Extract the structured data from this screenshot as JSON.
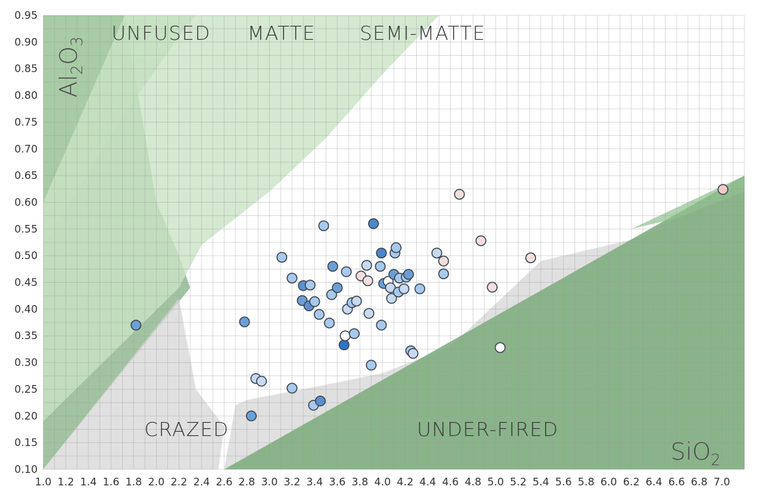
{
  "chart_data": {
    "type": "scatter",
    "title": "",
    "xlabel": "SiO",
    "xlabel_sub": "2",
    "ylabel": "Al",
    "ylabel_sub1": "2",
    "ylabel_mid": "O",
    "ylabel_sub2": "3",
    "xlim": [
      1.0,
      7.2
    ],
    "ylim": [
      0.1,
      0.95
    ],
    "grid": true,
    "x_ticks": [
      "1.0",
      "1.2",
      "1.4",
      "1.6",
      "1.8",
      "2.0",
      "2.2",
      "2.4",
      "2.6",
      "2.8",
      "3.0",
      "3.2",
      "3.4",
      "3.6",
      "3.8",
      "4.0",
      "4.2",
      "4.4",
      "4.6",
      "4.8",
      "5.0",
      "5.2",
      "5.4",
      "5.6",
      "5.8",
      "6.0",
      "6.2",
      "6.4",
      "6.6",
      "6.8",
      "7.0"
    ],
    "y_ticks": [
      "0.10",
      "0.15",
      "0.20",
      "0.25",
      "0.30",
      "0.35",
      "0.40",
      "0.45",
      "0.50",
      "0.55",
      "0.60",
      "0.65",
      "0.70",
      "0.75",
      "0.80",
      "0.85",
      "0.90",
      "0.95"
    ],
    "region_labels": {
      "unfused": "UNFUSED",
      "matte": "MATTE",
      "semi_matte": "SEMI-MATTE",
      "crazed": "CRAZED",
      "under_fired": "UNDER-FIRED"
    },
    "regions": [
      {
        "name": "unfused",
        "color": "#7aaa7a",
        "opacity": 0.7,
        "polygon": [
          [
            1.0,
            0.95
          ],
          [
            1.72,
            0.95
          ],
          [
            2.0,
            0.6
          ],
          [
            2.2,
            0.5
          ],
          [
            2.3,
            0.44
          ],
          [
            1.0,
            0.1
          ]
        ]
      },
      {
        "name": "matte",
        "color": "#a9cfa6",
        "opacity": 0.75,
        "polygon": [
          [
            1.0,
            0.52
          ],
          [
            1.7,
            0.76
          ],
          [
            2.2,
            0.91
          ],
          [
            2.35,
            0.95
          ],
          [
            1.72,
            0.95
          ],
          [
            1.0,
            0.95
          ]
        ]
      },
      {
        "name": "semi-matte",
        "color": "#c9e3c4",
        "opacity": 0.8,
        "polygon": [
          [
            1.0,
            0.1
          ],
          [
            1.0,
            0.19
          ],
          [
            2.2,
            0.44
          ],
          [
            2.4,
            0.52
          ],
          [
            3.0,
            0.62
          ],
          [
            3.5,
            0.72
          ],
          [
            4.0,
            0.84
          ],
          [
            4.5,
            0.95
          ],
          [
            1.72,
            0.95
          ],
          [
            1.0,
            0.6
          ]
        ]
      },
      {
        "name": "crazed",
        "color": "#d6d6d6",
        "opacity": 0.75,
        "polygon": [
          [
            1.0,
            0.1
          ],
          [
            2.55,
            0.1
          ],
          [
            2.6,
            0.18
          ],
          [
            2.35,
            0.25
          ],
          [
            2.2,
            0.42
          ],
          [
            1.0,
            0.1
          ]
        ]
      },
      {
        "name": "crazed-lower",
        "color": "#d6d6d6",
        "opacity": 0.75,
        "polygon": [
          [
            2.6,
            0.1
          ],
          [
            2.7,
            0.22
          ],
          [
            2.8,
            0.23
          ],
          [
            3.3,
            0.25
          ],
          [
            4.0,
            0.28
          ],
          [
            4.6,
            0.33
          ],
          [
            5.0,
            0.41
          ],
          [
            5.4,
            0.49
          ],
          [
            6.2,
            0.53
          ],
          [
            6.6,
            0.57
          ],
          [
            7.2,
            0.63
          ],
          [
            7.2,
            0.1
          ]
        ]
      },
      {
        "name": "under-fired",
        "color": "#7aaa7a",
        "opacity": 0.85,
        "polygon": [
          [
            2.6,
            0.1
          ],
          [
            7.2,
            0.65
          ],
          [
            7.2,
            0.1
          ]
        ]
      },
      {
        "name": "under-fired-top",
        "color": "#8fc18f",
        "opacity": 0.7,
        "polygon": [
          [
            6.2,
            0.55
          ],
          [
            7.2,
            0.65
          ],
          [
            7.2,
            0.62
          ],
          [
            6.6,
            0.57
          ]
        ]
      }
    ],
    "points": [
      {
        "x": 1.82,
        "y": 0.37,
        "c": "#6b9fd6"
      },
      {
        "x": 2.78,
        "y": 0.376,
        "c": "#6b9fd6"
      },
      {
        "x": 2.84,
        "y": 0.2,
        "c": "#6b9fd6"
      },
      {
        "x": 2.88,
        "y": 0.27,
        "c": "#c7daf0"
      },
      {
        "x": 2.93,
        "y": 0.265,
        "c": "#c7daf0"
      },
      {
        "x": 3.11,
        "y": 0.497,
        "c": "#a9c9ec"
      },
      {
        "x": 3.2,
        "y": 0.252,
        "c": "#a9c9ec"
      },
      {
        "x": 3.2,
        "y": 0.458,
        "c": "#a9c9ec"
      },
      {
        "x": 3.29,
        "y": 0.416,
        "c": "#6b9fd6"
      },
      {
        "x": 3.3,
        "y": 0.444,
        "c": "#5b90d0"
      },
      {
        "x": 3.36,
        "y": 0.445,
        "c": "#a9c9ec"
      },
      {
        "x": 3.35,
        "y": 0.406,
        "c": "#5b90d0"
      },
      {
        "x": 3.39,
        "y": 0.22,
        "c": "#a9c9ec"
      },
      {
        "x": 3.4,
        "y": 0.414,
        "c": "#a9c9ec"
      },
      {
        "x": 3.44,
        "y": 0.39,
        "c": "#a9c9ec"
      },
      {
        "x": 3.45,
        "y": 0.228,
        "c": "#5b90d0"
      },
      {
        "x": 3.48,
        "y": 0.556,
        "c": "#a9c9ec"
      },
      {
        "x": 3.53,
        "y": 0.374,
        "c": "#a9c9ec"
      },
      {
        "x": 3.55,
        "y": 0.427,
        "c": "#a9c9ec"
      },
      {
        "x": 3.56,
        "y": 0.48,
        "c": "#6b9fd6"
      },
      {
        "x": 3.6,
        "y": 0.44,
        "c": "#6b9fd6"
      },
      {
        "x": 3.66,
        "y": 0.333,
        "c": "#2f74c8"
      },
      {
        "x": 3.67,
        "y": 0.35,
        "c": "#ffffff"
      },
      {
        "x": 3.68,
        "y": 0.47,
        "c": "#a9c9ec"
      },
      {
        "x": 3.69,
        "y": 0.4,
        "c": "#c7daf0"
      },
      {
        "x": 3.73,
        "y": 0.412,
        "c": "#a9c9ec"
      },
      {
        "x": 3.75,
        "y": 0.354,
        "c": "#a9c9ec"
      },
      {
        "x": 3.77,
        "y": 0.415,
        "c": "#c7daf0"
      },
      {
        "x": 3.81,
        "y": 0.462,
        "c": "#f3dede"
      },
      {
        "x": 3.86,
        "y": 0.482,
        "c": "#c7daf0"
      },
      {
        "x": 3.87,
        "y": 0.453,
        "c": "#f3dede"
      },
      {
        "x": 3.88,
        "y": 0.392,
        "c": "#c7daf0"
      },
      {
        "x": 3.9,
        "y": 0.295,
        "c": "#a9c9ec"
      },
      {
        "x": 3.92,
        "y": 0.56,
        "c": "#4a86cc"
      },
      {
        "x": 3.98,
        "y": 0.48,
        "c": "#a9c9ec"
      },
      {
        "x": 3.99,
        "y": 0.37,
        "c": "#a9c9ec"
      },
      {
        "x": 3.99,
        "y": 0.505,
        "c": "#4a86cc"
      },
      {
        "x": 4.01,
        "y": 0.448,
        "c": "#6b9fd6"
      },
      {
        "x": 4.05,
        "y": 0.452,
        "c": "#ffffff"
      },
      {
        "x": 4.07,
        "y": 0.44,
        "c": "#c7daf0"
      },
      {
        "x": 4.08,
        "y": 0.42,
        "c": "#c7daf0"
      },
      {
        "x": 4.1,
        "y": 0.465,
        "c": "#6b9fd6"
      },
      {
        "x": 4.11,
        "y": 0.505,
        "c": "#a9c9ec"
      },
      {
        "x": 4.12,
        "y": 0.515,
        "c": "#a9c9ec"
      },
      {
        "x": 4.14,
        "y": 0.432,
        "c": "#a9c9ec"
      },
      {
        "x": 4.15,
        "y": 0.458,
        "c": "#a9c9ec"
      },
      {
        "x": 4.19,
        "y": 0.438,
        "c": "#c7daf0"
      },
      {
        "x": 4.21,
        "y": 0.46,
        "c": "#a9c9ec"
      },
      {
        "x": 4.23,
        "y": 0.465,
        "c": "#6b9fd6"
      },
      {
        "x": 4.25,
        "y": 0.322,
        "c": "#a9c9ec"
      },
      {
        "x": 4.27,
        "y": 0.317,
        "c": "#c7daf0"
      },
      {
        "x": 4.33,
        "y": 0.438,
        "c": "#a9c9ec"
      },
      {
        "x": 4.48,
        "y": 0.505,
        "c": "#c7daf0"
      },
      {
        "x": 4.54,
        "y": 0.466,
        "c": "#a9c9ec"
      },
      {
        "x": 4.54,
        "y": 0.49,
        "c": "#f3dede"
      },
      {
        "x": 4.68,
        "y": 0.615,
        "c": "#f3dede"
      },
      {
        "x": 4.87,
        "y": 0.528,
        "c": "#f3dede"
      },
      {
        "x": 4.97,
        "y": 0.441,
        "c": "#f3dede"
      },
      {
        "x": 5.04,
        "y": 0.328,
        "c": "#ffffff"
      },
      {
        "x": 5.31,
        "y": 0.496,
        "c": "#f3dede"
      },
      {
        "x": 7.01,
        "y": 0.624,
        "c": "#efc9c9"
      }
    ]
  }
}
